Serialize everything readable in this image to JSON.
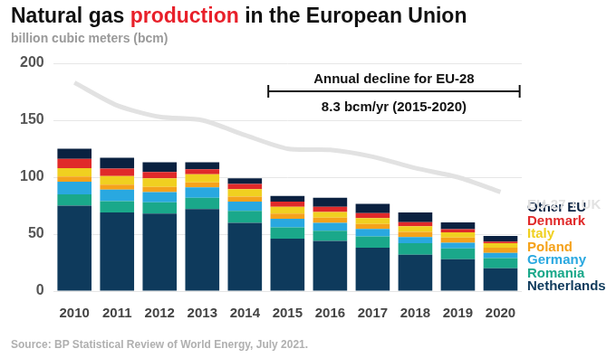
{
  "chart_data": {
    "type": "bar",
    "stacked": true,
    "title": [
      {
        "text": "Natural gas "
      },
      {
        "text": "production",
        "color": "#e8202a"
      },
      {
        "text": " in the European Union"
      }
    ],
    "subtitle": "billion cubic meters (bcm)",
    "source": "Source: BP Statistical Review of World Energy, July 2021.",
    "categories": [
      "2010",
      "2011",
      "2012",
      "2013",
      "2014",
      "2015",
      "2016",
      "2017",
      "2018",
      "2019",
      "2020"
    ],
    "series": [
      {
        "name": "Netherlands",
        "color": "#0e3a5c",
        "values": [
          75,
          69,
          68,
          72,
          60,
          46,
          44,
          38,
          32,
          28,
          20
        ]
      },
      {
        "name": "Romania",
        "color": "#1aa88a",
        "values": [
          10,
          10,
          10,
          10,
          10.5,
          10,
          9,
          10,
          10,
          9.5,
          9
        ]
      },
      {
        "name": "Germany",
        "color": "#29a8e0",
        "values": [
          11,
          10,
          9,
          9,
          8,
          7.5,
          7,
          6.5,
          5.5,
          5,
          4.5
        ]
      },
      {
        "name": "Poland",
        "color": "#f5a21b",
        "values": [
          4.5,
          4.5,
          4.5,
          4.5,
          4.5,
          4.5,
          4.5,
          4.5,
          4.5,
          4.5,
          4.5
        ]
      },
      {
        "name": "Italy",
        "color": "#f0d020",
        "values": [
          7.5,
          7.5,
          7.5,
          7,
          6.5,
          6,
          5,
          5,
          5,
          4.5,
          4
        ]
      },
      {
        "name": "Denmark",
        "color": "#e02a2a",
        "values": [
          8,
          6.5,
          5.5,
          4.5,
          4.5,
          4.5,
          4.5,
          4.5,
          3.5,
          2.8,
          1.4
        ]
      },
      {
        "name": "Other EU",
        "color": "#0a2140",
        "values": [
          9,
          9.5,
          8.5,
          6,
          5,
          5,
          8,
          8,
          8.5,
          6,
          5
        ]
      },
      {
        "name": "EU-27 + UK",
        "type": "line",
        "color": "#e2e2e2",
        "values": [
          183,
          163,
          153,
          150,
          137,
          125,
          124,
          118,
          108,
          100,
          87
        ]
      }
    ],
    "annotation": {
      "text": [
        "Annual decline for EU-28",
        "8.3 bcm/yr (2015-2020)"
      ],
      "span": [
        "2015",
        "2020"
      ]
    },
    "ylim": [
      0,
      200
    ],
    "yticks": [
      0,
      50,
      100,
      150,
      200
    ],
    "grid": true,
    "legend": "right"
  }
}
